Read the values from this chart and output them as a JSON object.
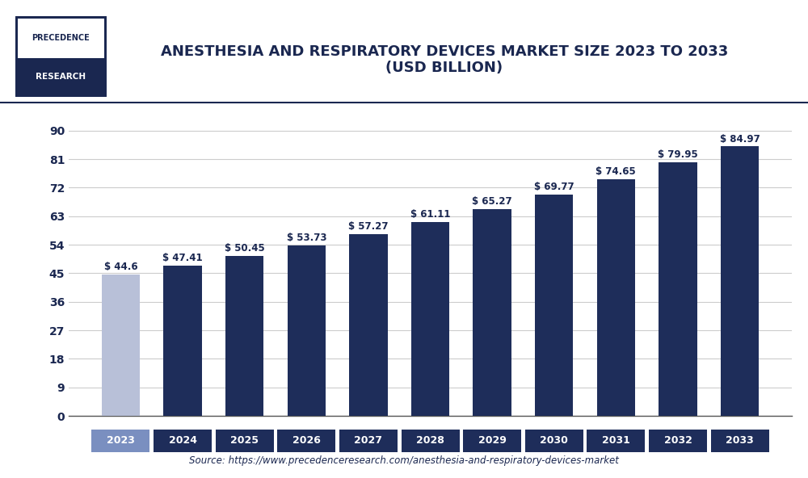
{
  "title_line1": "ANESTHESIA AND RESPIRATORY DEVICES MARKET SIZE 2023 TO 2033",
  "title_line2": "(USD BILLION)",
  "years": [
    2023,
    2024,
    2025,
    2026,
    2027,
    2028,
    2029,
    2030,
    2031,
    2032,
    2033
  ],
  "values": [
    44.6,
    47.41,
    50.45,
    53.73,
    57.27,
    61.11,
    65.27,
    69.77,
    74.65,
    79.95,
    84.97
  ],
  "labels": [
    "$ 44.6",
    "$ 47.41",
    "$ 50.45",
    "$ 53.73",
    "$ 57.27",
    "$ 61.11",
    "$ 65.27",
    "$ 69.77",
    "$ 74.65",
    "$ 79.95",
    "$ 84.97"
  ],
  "bar_colors": [
    "#b8c0d8",
    "#1e2d5a",
    "#1e2d5a",
    "#1e2d5a",
    "#1e2d5a",
    "#1e2d5a",
    "#1e2d5a",
    "#1e2d5a",
    "#1e2d5a",
    "#1e2d5a",
    "#1e2d5a"
  ],
  "xtick_bg_colors": [
    "#7a8fc0",
    "#1e2d5a",
    "#1e2d5a",
    "#1e2d5a",
    "#1e2d5a",
    "#1e2d5a",
    "#1e2d5a",
    "#1e2d5a",
    "#1e2d5a",
    "#1e2d5a",
    "#1e2d5a"
  ],
  "yticks": [
    0,
    9,
    18,
    27,
    36,
    45,
    54,
    63,
    72,
    81,
    90
  ],
  "ylim": [
    0,
    95
  ],
  "source_text": "Source: https://www.precedenceresearch.com/anesthesia-and-respiratory-devices-market",
  "background_color": "#ffffff",
  "plot_bg_color": "#ffffff",
  "grid_color": "#cccccc",
  "title_color": "#1a2750",
  "label_color": "#1a2750",
  "axis_color": "#333333",
  "logo_text1": "PRECEDENCE",
  "logo_text2": "RESEARCH",
  "logo_border_color": "#1a2750",
  "logo_top_bg": "#ffffff",
  "logo_bottom_bg": "#1a2750"
}
